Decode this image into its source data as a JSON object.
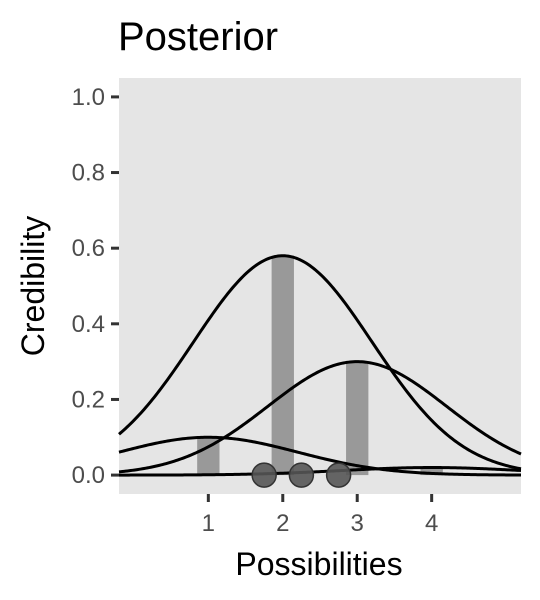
{
  "chart_data": {
    "type": "bar",
    "title": "Posterior",
    "xlabel": "Possibilities",
    "ylabel": "Credibility",
    "xlim": [
      -0.2,
      5.2
    ],
    "ylim": [
      -0.05,
      1.05
    ],
    "xticks": [
      1,
      2,
      3,
      4
    ],
    "xtick_labels": [
      "1",
      "2",
      "3",
      "4"
    ],
    "yticks": [
      0,
      0.2,
      0.4,
      0.6,
      0.8,
      1.0
    ],
    "ytick_labels": [
      "0.0",
      "0.2",
      "0.4",
      "0.6",
      "0.8",
      "1.0"
    ],
    "panel_color": "#e5e5e5",
    "bar_color": "#999999",
    "curve_color": "#000000",
    "point_color": "#555555",
    "bars": [
      {
        "x": 1,
        "value": 0.1
      },
      {
        "x": 2,
        "value": 0.58
      },
      {
        "x": 3,
        "value": 0.3
      },
      {
        "x": 4,
        "value": 0.02
      }
    ],
    "bar_width": 0.3,
    "curves": [
      {
        "mean": 1,
        "sd": 1.2,
        "peak": 0.1
      },
      {
        "mean": 2,
        "sd": 1.2,
        "peak": 0.58
      },
      {
        "mean": 3,
        "sd": 1.2,
        "peak": 0.3
      },
      {
        "mean": 4,
        "sd": 1.2,
        "peak": 0.02
      }
    ],
    "data_points": [
      1.75,
      2.25,
      2.75
    ],
    "grid": false,
    "legend": "none"
  }
}
